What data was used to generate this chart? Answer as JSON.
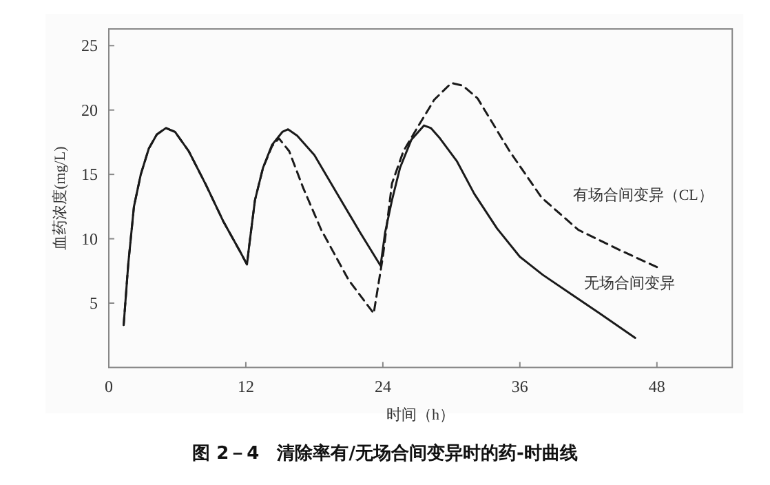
{
  "chart_data": {
    "type": "line",
    "title": "图 2－4　清除率有/无场合间变异时的药-时曲线",
    "xlabel": "时间（h）",
    "ylabel": "血药浓度(mg/L)",
    "xlim": [
      0,
      54.6
    ],
    "ylim": [
      0,
      26.3
    ],
    "xticks": [
      0,
      12,
      24,
      36,
      48
    ],
    "yticks": [
      5,
      10,
      15,
      20,
      25
    ],
    "grid": false,
    "marker": "none",
    "series": [
      {
        "name": "无场合间变异",
        "color": "#1a1a1a",
        "line_style": "solid",
        "x": [
          1.3,
          1.7,
          2.2,
          2.8,
          3.5,
          4.2,
          5,
          5.8,
          7,
          8.5,
          10,
          11.5,
          12.1,
          12.3,
          12.8,
          13.5,
          14.3,
          15.2,
          15.7,
          16.5,
          18,
          20,
          22,
          23.8,
          24.2,
          24.8,
          25.5,
          26.5,
          27.6,
          28.2,
          29,
          30.5,
          32,
          34,
          36,
          38,
          40.5,
          43,
          46.1
        ],
        "values": [
          3.3,
          8,
          12.5,
          15,
          17,
          18.1,
          18.6,
          18.3,
          16.8,
          14.2,
          11.4,
          9,
          8,
          9.5,
          13,
          15.5,
          17.3,
          18.3,
          18.5,
          18,
          16.5,
          13.5,
          10.5,
          7.9,
          10.5,
          13,
          15.5,
          17.7,
          18.8,
          18.6,
          17.8,
          16,
          13.5,
          10.8,
          8.6,
          7.2,
          5.7,
          4.2,
          2.3
        ]
      },
      {
        "name": "有场合间变异（CL）",
        "color": "#1a1a1a",
        "line_style": "dashed",
        "x": [
          1.3,
          1.7,
          2.2,
          2.8,
          3.5,
          4.2,
          5,
          5.8,
          7,
          8.5,
          10,
          11.5,
          12.1,
          12.3,
          12.8,
          13.5,
          14.3,
          14.9,
          15.8,
          17,
          18.6,
          21,
          23.2,
          24,
          24.8,
          25.8,
          27,
          28.5,
          30,
          31,
          32.3,
          35.1,
          37.9,
          41.1,
          44.8,
          48
        ],
        "values": [
          3.3,
          8,
          12.5,
          15,
          17,
          18.1,
          18.6,
          18.3,
          16.8,
          14.2,
          11.4,
          9,
          8,
          9.5,
          13,
          15.5,
          17.2,
          17.8,
          16.8,
          14,
          10.7,
          6.8,
          4.2,
          8.6,
          14.3,
          16.8,
          18.6,
          20.8,
          22.1,
          21.9,
          20.9,
          16.8,
          13.2,
          10.7,
          9.1,
          7.8
        ]
      }
    ]
  }
}
